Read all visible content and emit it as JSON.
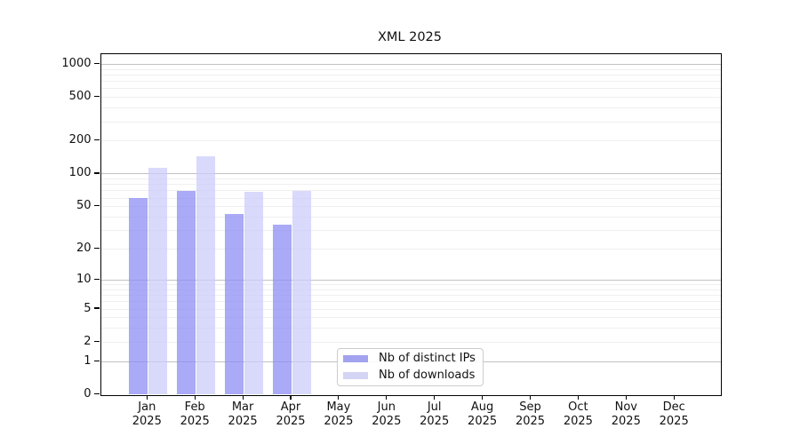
{
  "chart_data": {
    "type": "bar",
    "title": "XML 2025",
    "grid": true,
    "legend_position": "bottom-center",
    "y_axis": {
      "scale": "log(1+value)",
      "ylim": [
        0,
        1240
      ],
      "ticks": [
        {
          "label": "0",
          "value": 0
        },
        {
          "label": "1",
          "value": 1
        },
        {
          "label": "2",
          "value": 2
        },
        {
          "label": "5",
          "value": 5
        },
        {
          "label": "10",
          "value": 10
        },
        {
          "label": "20",
          "value": 20
        },
        {
          "label": "50",
          "value": 50
        },
        {
          "label": "100",
          "value": 100
        },
        {
          "label": "200",
          "value": 200
        },
        {
          "label": "500",
          "value": 500
        },
        {
          "label": "1000",
          "value": 1000
        }
      ]
    },
    "x_axis": {
      "labels": [
        {
          "month": "Jan",
          "year": "2025"
        },
        {
          "month": "Feb",
          "year": "2025"
        },
        {
          "month": "Mar",
          "year": "2025"
        },
        {
          "month": "Apr",
          "year": "2025"
        },
        {
          "month": "May",
          "year": "2025"
        },
        {
          "month": "Jun",
          "year": "2025"
        },
        {
          "month": "Jul",
          "year": "2025"
        },
        {
          "month": "Aug",
          "year": "2025"
        },
        {
          "month": "Sep",
          "year": "2025"
        },
        {
          "month": "Oct",
          "year": "2025"
        },
        {
          "month": "Nov",
          "year": "2025"
        },
        {
          "month": "Dec",
          "year": "2025"
        }
      ]
    },
    "series": [
      {
        "name": "Nb of distinct IPs",
        "swatch_color": "#a2a2ee",
        "bar_color": "rgba(138,138,244,0.73)",
        "values": [
          60,
          70,
          43,
          34,
          0,
          0,
          0,
          0,
          0,
          0,
          0,
          0
        ]
      },
      {
        "name": "Nb of downloads",
        "swatch_color": "#d4d4f4",
        "bar_color": "rgba(203,203,249,0.73)",
        "values": [
          115,
          145,
          68,
          70,
          0,
          0,
          0,
          0,
          0,
          0,
          0,
          0
        ]
      }
    ]
  }
}
